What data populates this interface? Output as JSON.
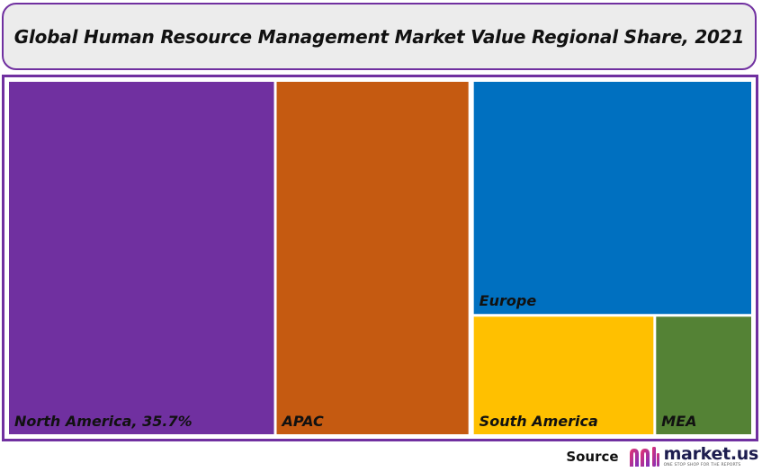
{
  "title": "Global Human Resource Management Market Value Regional Share, 2021",
  "source": {
    "label": "Source",
    "logo_text": "market.us",
    "logo_tagline": "ONE STOP SHOP FOR THE REPORTS",
    "logo_icon": "market-us-logo-icon"
  },
  "chart_data": {
    "type": "treemap",
    "title": "Global Human Resource Management Market Value Regional Share, 2021",
    "items": [
      {
        "name": "North America",
        "label": "North America, 35.7%",
        "value": 35.7,
        "color": "#7030a0"
      },
      {
        "name": "APAC",
        "label": "APAC",
        "value": 26.2,
        "color": "#c55a11"
      },
      {
        "name": "Europe",
        "label": "Europe",
        "value": 25.1,
        "color": "#0070c0"
      },
      {
        "name": "South America",
        "label": "South America",
        "value": 8.5,
        "color": "#ffc000"
      },
      {
        "name": "MEA",
        "label": "MEA",
        "value": 4.5,
        "color": "#548235"
      }
    ]
  }
}
